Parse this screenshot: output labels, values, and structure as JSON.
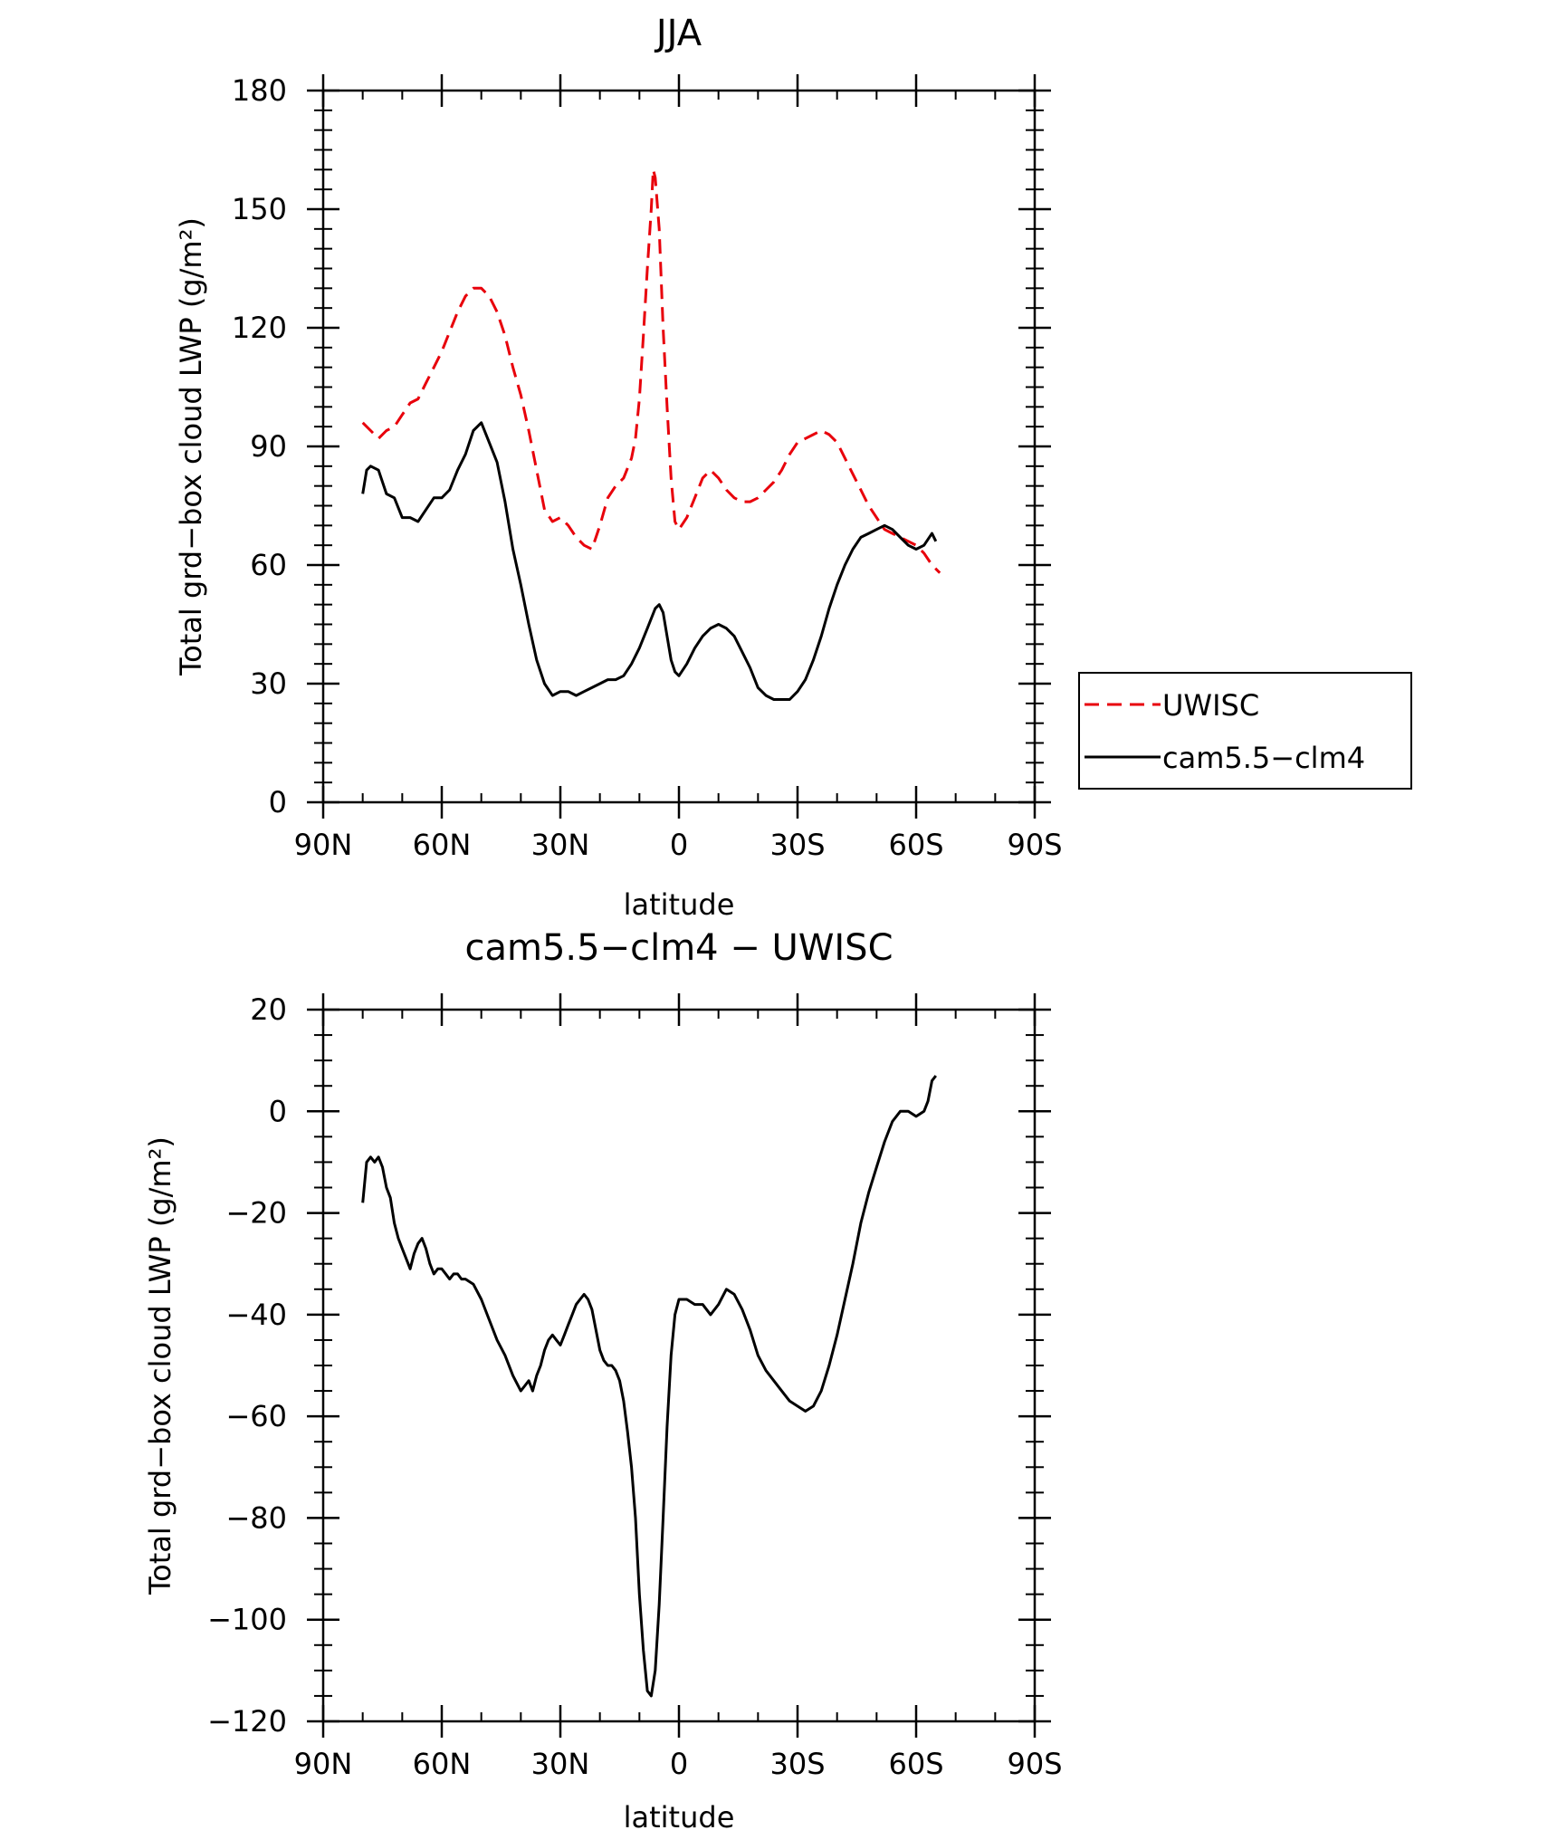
{
  "chart_data": [
    {
      "type": "line",
      "title": "JJA",
      "xlabel": "latitude",
      "ylabel": "Total grd−box cloud LWP (g/m²)",
      "xlim": [
        90,
        -90
      ],
      "ylim": [
        0,
        180
      ],
      "x_ticks": [
        90,
        60,
        30,
        0,
        -30,
        -60,
        -90
      ],
      "x_tick_labels": [
        "90N",
        "60N",
        "30N",
        "0",
        "30S",
        "60S",
        "90S"
      ],
      "y_ticks": [
        0,
        30,
        60,
        90,
        120,
        150,
        180
      ],
      "y_tick_labels": [
        "0",
        "30",
        "60",
        "90",
        "120",
        "150",
        "180"
      ],
      "legend": [
        "UWISC",
        "cam5.5−clm4"
      ],
      "series": [
        {
          "name": "UWISC",
          "color": "#e8000b",
          "style": "dashed",
          "points": [
            [
              80,
              96
            ],
            [
              78,
              94
            ],
            [
              76,
              92
            ],
            [
              74,
              94
            ],
            [
              72,
              95
            ],
            [
              70,
              98
            ],
            [
              68,
              101
            ],
            [
              66,
              102
            ],
            [
              64,
              106
            ],
            [
              62,
              110
            ],
            [
              60,
              114
            ],
            [
              58,
              119
            ],
            [
              56,
              124
            ],
            [
              54,
              128
            ],
            [
              52,
              130
            ],
            [
              50,
              130
            ],
            [
              48,
              128
            ],
            [
              46,
              124
            ],
            [
              44,
              118
            ],
            [
              42,
              110
            ],
            [
              40,
              103
            ],
            [
              38,
              94
            ],
            [
              36,
              84
            ],
            [
              34,
              74
            ],
            [
              32,
              71
            ],
            [
              30,
              72
            ],
            [
              28,
              70
            ],
            [
              26,
              67
            ],
            [
              24,
              65
            ],
            [
              22,
              64
            ],
            [
              20,
              70
            ],
            [
              18,
              77
            ],
            [
              16,
              80
            ],
            [
              14,
              82
            ],
            [
              12,
              87
            ],
            [
              11,
              92
            ],
            [
              10,
              102
            ],
            [
              9,
              118
            ],
            [
              8,
              135
            ],
            [
              7,
              150
            ],
            [
              6.5,
              160
            ],
            [
              6,
              158
            ],
            [
              5,
              145
            ],
            [
              4,
              120
            ],
            [
              3,
              100
            ],
            [
              2,
              82
            ],
            [
              1,
              71
            ],
            [
              0,
              69
            ],
            [
              -2,
              72
            ],
            [
              -4,
              77
            ],
            [
              -6,
              82
            ],
            [
              -8,
              84
            ],
            [
              -10,
              82
            ],
            [
              -12,
              79
            ],
            [
              -14,
              77
            ],
            [
              -16,
              76
            ],
            [
              -18,
              76
            ],
            [
              -20,
              77
            ],
            [
              -22,
              79
            ],
            [
              -24,
              81
            ],
            [
              -26,
              84
            ],
            [
              -28,
              88
            ],
            [
              -30,
              91
            ],
            [
              -32,
              92
            ],
            [
              -34,
              93
            ],
            [
              -36,
              94
            ],
            [
              -38,
              93
            ],
            [
              -40,
              91
            ],
            [
              -42,
              87
            ],
            [
              -44,
              83
            ],
            [
              -46,
              79
            ],
            [
              -48,
              75
            ],
            [
              -50,
              72
            ],
            [
              -52,
              69
            ],
            [
              -54,
              68
            ],
            [
              -56,
              67
            ],
            [
              -58,
              66
            ],
            [
              -60,
              65
            ],
            [
              -62,
              63
            ],
            [
              -64,
              60
            ],
            [
              -66,
              58
            ]
          ]
        },
        {
          "name": "cam5.5−clm4",
          "color": "#000000",
          "style": "solid",
          "points": [
            [
              80,
              78
            ],
            [
              79,
              84
            ],
            [
              78,
              85
            ],
            [
              76,
              84
            ],
            [
              74,
              78
            ],
            [
              72,
              77
            ],
            [
              70,
              72
            ],
            [
              68,
              72
            ],
            [
              66,
              71
            ],
            [
              64,
              74
            ],
            [
              62,
              77
            ],
            [
              60,
              77
            ],
            [
              58,
              79
            ],
            [
              56,
              84
            ],
            [
              54,
              88
            ],
            [
              52,
              94
            ],
            [
              50,
              96
            ],
            [
              48,
              91
            ],
            [
              46,
              86
            ],
            [
              44,
              76
            ],
            [
              42,
              64
            ],
            [
              40,
              55
            ],
            [
              38,
              45
            ],
            [
              36,
              36
            ],
            [
              34,
              30
            ],
            [
              32,
              27
            ],
            [
              30,
              28
            ],
            [
              28,
              28
            ],
            [
              26,
              27
            ],
            [
              24,
              28
            ],
            [
              22,
              29
            ],
            [
              20,
              30
            ],
            [
              18,
              31
            ],
            [
              16,
              31
            ],
            [
              14,
              32
            ],
            [
              12,
              35
            ],
            [
              10,
              39
            ],
            [
              8,
              44
            ],
            [
              6,
              49
            ],
            [
              5,
              50
            ],
            [
              4,
              48
            ],
            [
              3,
              42
            ],
            [
              2,
              36
            ],
            [
              1,
              33
            ],
            [
              0,
              32
            ],
            [
              -2,
              35
            ],
            [
              -4,
              39
            ],
            [
              -6,
              42
            ],
            [
              -8,
              44
            ],
            [
              -10,
              45
            ],
            [
              -12,
              44
            ],
            [
              -14,
              42
            ],
            [
              -16,
              38
            ],
            [
              -18,
              34
            ],
            [
              -20,
              29
            ],
            [
              -22,
              27
            ],
            [
              -24,
              26
            ],
            [
              -26,
              26
            ],
            [
              -28,
              26
            ],
            [
              -30,
              28
            ],
            [
              -32,
              31
            ],
            [
              -34,
              36
            ],
            [
              -36,
              42
            ],
            [
              -38,
              49
            ],
            [
              -40,
              55
            ],
            [
              -42,
              60
            ],
            [
              -44,
              64
            ],
            [
              -46,
              67
            ],
            [
              -48,
              68
            ],
            [
              -50,
              69
            ],
            [
              -52,
              70
            ],
            [
              -54,
              69
            ],
            [
              -56,
              67
            ],
            [
              -58,
              65
            ],
            [
              -60,
              64
            ],
            [
              -62,
              65
            ],
            [
              -64,
              68
            ],
            [
              -65,
              66
            ]
          ]
        }
      ]
    },
    {
      "type": "line",
      "title": "cam5.5−clm4 − UWISC",
      "xlabel": "latitude",
      "ylabel": "Total grd−box cloud LWP (g/m²)",
      "xlim": [
        90,
        -90
      ],
      "ylim": [
        -120,
        20
      ],
      "x_ticks": [
        90,
        60,
        30,
        0,
        -30,
        -60,
        -90
      ],
      "x_tick_labels": [
        "90N",
        "60N",
        "30N",
        "0",
        "30S",
        "60S",
        "90S"
      ],
      "y_ticks": [
        -120,
        -100,
        -80,
        -60,
        -40,
        -20,
        0,
        20
      ],
      "y_tick_labels": [
        "−120",
        "−100",
        "−80",
        "−60",
        "−40",
        "−20",
        "0",
        "20"
      ],
      "series": [
        {
          "name": "cam5.5−clm4 − UWISC",
          "color": "#000000",
          "style": "solid",
          "points": [
            [
              80,
              -18
            ],
            [
              79,
              -10
            ],
            [
              78,
              -9
            ],
            [
              77,
              -10
            ],
            [
              76,
              -9
            ],
            [
              75,
              -11
            ],
            [
              74,
              -15
            ],
            [
              73,
              -17
            ],
            [
              72,
              -22
            ],
            [
              71,
              -25
            ],
            [
              70,
              -27
            ],
            [
              69,
              -29
            ],
            [
              68,
              -31
            ],
            [
              67,
              -28
            ],
            [
              66,
              -26
            ],
            [
              65,
              -25
            ],
            [
              64,
              -27
            ],
            [
              63,
              -30
            ],
            [
              62,
              -32
            ],
            [
              61,
              -31
            ],
            [
              60,
              -31
            ],
            [
              59,
              -32
            ],
            [
              58,
              -33
            ],
            [
              57,
              -32
            ],
            [
              56,
              -32
            ],
            [
              55,
              -33
            ],
            [
              54,
              -33
            ],
            [
              52,
              -34
            ],
            [
              50,
              -37
            ],
            [
              48,
              -41
            ],
            [
              46,
              -45
            ],
            [
              44,
              -48
            ],
            [
              42,
              -52
            ],
            [
              40,
              -55
            ],
            [
              39,
              -54
            ],
            [
              38,
              -53
            ],
            [
              37,
              -55
            ],
            [
              36,
              -52
            ],
            [
              35,
              -50
            ],
            [
              34,
              -47
            ],
            [
              33,
              -45
            ],
            [
              32,
              -44
            ],
            [
              31,
              -45
            ],
            [
              30,
              -46
            ],
            [
              29,
              -44
            ],
            [
              28,
              -42
            ],
            [
              27,
              -40
            ],
            [
              26,
              -38
            ],
            [
              25,
              -37
            ],
            [
              24,
              -36
            ],
            [
              23,
              -37
            ],
            [
              22,
              -39
            ],
            [
              21,
              -43
            ],
            [
              20,
              -47
            ],
            [
              19,
              -49
            ],
            [
              18,
              -50
            ],
            [
              17,
              -50
            ],
            [
              16,
              -51
            ],
            [
              15,
              -53
            ],
            [
              14,
              -57
            ],
            [
              13,
              -63
            ],
            [
              12,
              -70
            ],
            [
              11,
              -80
            ],
            [
              10,
              -95
            ],
            [
              9,
              -106
            ],
            [
              8,
              -114
            ],
            [
              7,
              -115
            ],
            [
              6,
              -110
            ],
            [
              5,
              -97
            ],
            [
              4,
              -80
            ],
            [
              3,
              -62
            ],
            [
              2,
              -48
            ],
            [
              1,
              -40
            ],
            [
              0,
              -37
            ],
            [
              -2,
              -37
            ],
            [
              -4,
              -38
            ],
            [
              -6,
              -38
            ],
            [
              -8,
              -40
            ],
            [
              -10,
              -38
            ],
            [
              -12,
              -35
            ],
            [
              -14,
              -36
            ],
            [
              -16,
              -39
            ],
            [
              -18,
              -43
            ],
            [
              -20,
              -48
            ],
            [
              -22,
              -51
            ],
            [
              -24,
              -53
            ],
            [
              -26,
              -55
            ],
            [
              -28,
              -57
            ],
            [
              -30,
              -58
            ],
            [
              -32,
              -59
            ],
            [
              -34,
              -58
            ],
            [
              -36,
              -55
            ],
            [
              -38,
              -50
            ],
            [
              -40,
              -44
            ],
            [
              -42,
              -37
            ],
            [
              -44,
              -30
            ],
            [
              -46,
              -22
            ],
            [
              -48,
              -16
            ],
            [
              -50,
              -11
            ],
            [
              -52,
              -6
            ],
            [
              -54,
              -2
            ],
            [
              -56,
              0
            ],
            [
              -58,
              0
            ],
            [
              -60,
              -1
            ],
            [
              -62,
              0
            ],
            [
              -63,
              2
            ],
            [
              -64,
              6
            ],
            [
              -65,
              7
            ]
          ]
        }
      ]
    }
  ]
}
